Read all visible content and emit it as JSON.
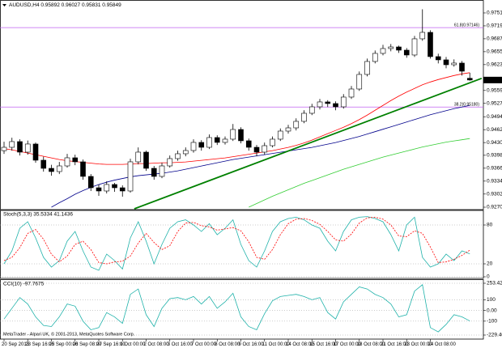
{
  "chart_data": [
    {
      "type": "candlestick",
      "title": "AUDUSD,H4 0.95892 0.96027 0.95831 0.95849",
      "open": [
        0.941,
        0.94183,
        0.94324,
        0.94063,
        0.94264,
        0.93863,
        0.93662,
        0.93582,
        0.93722,
        0.93923,
        0.93823,
        0.93462,
        0.93181,
        0.93101,
        0.93262,
        0.93181,
        0.93101,
        0.93823,
        0.94063,
        0.93662,
        0.93462,
        0.93722,
        0.93903,
        0.94023,
        0.94103,
        0.94304,
        0.94183,
        0.94424,
        0.94304,
        0.94384,
        0.94624,
        0.94344,
        0.94183,
        0.94063,
        0.94223,
        0.94384,
        0.94584,
        0.94664,
        0.94825,
        0.95025,
        0.95185,
        0.95306,
        0.95266,
        0.95185,
        0.95426,
        0.95626,
        0.95987,
        0.96308,
        0.96508,
        0.96628,
        0.96668,
        0.96588,
        0.96468,
        0.96869,
        0.97029,
        0.96428,
        0.96348,
        0.96227,
        0.96268,
        0.95892
      ],
      "high": [
        0.9432,
        0.9442,
        0.9438,
        0.9435,
        0.943,
        0.9395,
        0.9375,
        0.9382,
        0.9402,
        0.94,
        0.9388,
        0.9352,
        0.9326,
        0.9334,
        0.933,
        0.9324,
        0.939,
        0.9418,
        0.941,
        0.9372,
        0.938,
        0.9398,
        0.941,
        0.9418,
        0.9438,
        0.9436,
        0.945,
        0.9448,
        0.9445,
        0.9476,
        0.9468,
        0.944,
        0.9424,
        0.943,
        0.9445,
        0.9465,
        0.9474,
        0.949,
        0.951,
        0.9526,
        0.9538,
        0.9535,
        0.9532,
        0.955,
        0.957,
        0.9606,
        0.9638,
        0.9658,
        0.9672,
        0.9674,
        0.967,
        0.9664,
        0.9694,
        0.976,
        0.9708,
        0.965,
        0.9642,
        0.9636,
        0.9632,
        0.96027
      ],
      "low": [
        0.9402,
        0.941,
        0.9398,
        0.94,
        0.938,
        0.9358,
        0.9348,
        0.9352,
        0.9368,
        0.9374,
        0.9338,
        0.931,
        0.9298,
        0.9304,
        0.9308,
        0.9296,
        0.9306,
        0.9376,
        0.936,
        0.9338,
        0.9342,
        0.9368,
        0.9385,
        0.9396,
        0.9405,
        0.941,
        0.9414,
        0.9424,
        0.9425,
        0.9434,
        0.9428,
        0.941,
        0.9396,
        0.94,
        0.9418,
        0.9434,
        0.9452,
        0.946,
        0.9478,
        0.9498,
        0.9512,
        0.9518,
        0.951,
        0.9514,
        0.9538,
        0.9558,
        0.9594,
        0.9626,
        0.9646,
        0.9656,
        0.9652,
        0.964,
        0.9642,
        0.9682,
        0.9638,
        0.9626,
        0.9614,
        0.9618,
        0.9596,
        0.95831
      ],
      "close": [
        0.94183,
        0.94324,
        0.94063,
        0.94264,
        0.93863,
        0.93662,
        0.93582,
        0.93722,
        0.93923,
        0.93823,
        0.93462,
        0.93181,
        0.93101,
        0.93262,
        0.93181,
        0.93101,
        0.93823,
        0.94063,
        0.93662,
        0.93462,
        0.93722,
        0.93903,
        0.94023,
        0.94103,
        0.94304,
        0.94183,
        0.94424,
        0.94304,
        0.94384,
        0.94624,
        0.94344,
        0.94183,
        0.94063,
        0.94223,
        0.94384,
        0.94584,
        0.94664,
        0.94825,
        0.95025,
        0.95185,
        0.95306,
        0.95266,
        0.95185,
        0.95426,
        0.95626,
        0.95987,
        0.96308,
        0.96508,
        0.96628,
        0.96668,
        0.96588,
        0.96468,
        0.96869,
        0.97029,
        0.96428,
        0.96348,
        0.96227,
        0.96268,
        0.96067,
        0.95849
      ],
      "up_color": "#ffffff",
      "down_color": "#000000",
      "wick_color": "#000000",
      "series": [
        {
          "color": "#ff0000",
          "values": [
            0.9415,
            0.9412,
            0.9408,
            0.9404,
            0.94,
            0.9396,
            0.9392,
            0.9388,
            0.9385,
            0.9383,
            0.9381,
            0.9379,
            0.9377,
            0.9376,
            0.9376,
            0.9376,
            0.9377,
            0.9378,
            0.9378,
            0.9379,
            0.938,
            0.938,
            0.9381,
            0.9382,
            0.9384,
            0.9386,
            0.9388,
            0.939,
            0.9392,
            0.9395,
            0.9398,
            0.9401,
            0.9404,
            0.9407,
            0.941,
            0.9414,
            0.9418,
            0.9423,
            0.9429,
            0.9436,
            0.9444,
            0.9452,
            0.946,
            0.9468,
            0.9477,
            0.9487,
            0.9498,
            0.951,
            0.9522,
            0.9534,
            0.9545,
            0.9555,
            0.9564,
            0.9573,
            0.958,
            0.9586,
            0.9591,
            0.9596,
            0.96,
            0.9603
          ]
        },
        {
          "color": "#00008b",
          "values": [
            null,
            null,
            null,
            null,
            null,
            null,
            0.927,
            0.9281,
            0.9291,
            0.9302,
            0.9311,
            0.9319,
            0.9326,
            0.9332,
            0.9337,
            0.9341,
            0.9345,
            0.9348,
            0.935,
            0.9352,
            0.9354,
            0.9357,
            0.936,
            0.9364,
            0.9368,
            0.9372,
            0.9376,
            0.938,
            0.9384,
            0.9388,
            0.9391,
            0.9394,
            0.9397,
            0.94,
            0.9403,
            0.9406,
            0.9409,
            0.9412,
            0.9415,
            0.9418,
            0.9422,
            0.9426,
            0.943,
            0.9435,
            0.944,
            0.9445,
            0.9451,
            0.9457,
            0.9463,
            0.9469,
            0.9475,
            0.9481,
            0.9487,
            0.9493,
            0.9499,
            0.9504,
            0.9509,
            0.9514,
            0.9518,
            0.9522
          ]
        },
        {
          "color": "#32cd32",
          "values": [
            null,
            null,
            null,
            null,
            null,
            null,
            null,
            null,
            null,
            null,
            null,
            null,
            null,
            null,
            null,
            null,
            null,
            null,
            null,
            null,
            null,
            null,
            null,
            null,
            null,
            null,
            null,
            null,
            null,
            null,
            null,
            0.927,
            0.9279,
            0.9288,
            0.9297,
            0.9305,
            0.9313,
            0.9321,
            0.9329,
            0.9336,
            0.9343,
            0.935,
            0.9357,
            0.9364,
            0.937,
            0.9376,
            0.9382,
            0.9388,
            0.9394,
            0.9399,
            0.9404,
            0.9409,
            0.9414,
            0.9419,
            0.9423,
            0.9427,
            0.9431,
            0.9434,
            0.9437,
            0.944
          ]
        }
      ],
      "levels": [
        {
          "label": "61.8(0.97146)",
          "value": 0.97146,
          "color": "#c060f0"
        },
        {
          "label": "38.2(0.95180)",
          "value": 0.9518,
          "color": "#c060f0"
        }
      ],
      "trendline": {
        "x": [
          16.5,
          60.5
        ],
        "values": [
          0.9266,
          0.9589
        ],
        "color": "#008000"
      },
      "ylim": [
        0.9266,
        0.9779
      ],
      "yticks": [
        {
          "value": 0.9751,
          "label": "0.97510"
        },
        {
          "value": 0.9719,
          "label": "0.97190"
        },
        {
          "value": 0.9687,
          "label": "0.96870"
        },
        {
          "value": 0.9655,
          "label": "0.96550"
        },
        {
          "value": 0.9623,
          "label": "0.96230"
        },
        {
          "value": 0.9559,
          "label": "0.95590"
        },
        {
          "value": 0.9527,
          "label": "0.95270"
        },
        {
          "value": 0.9494,
          "label": "0.94940"
        },
        {
          "value": 0.9462,
          "label": "0.94620"
        },
        {
          "value": 0.943,
          "label": "0.94300"
        },
        {
          "value": 0.93985,
          "label": "0.93985"
        },
        {
          "value": 0.93665,
          "label": "0.93665"
        },
        {
          "value": 0.93345,
          "label": "0.93345"
        },
        {
          "value": 0.93025,
          "label": "0.93025"
        },
        {
          "value": 0.927,
          "label": "0.92700"
        }
      ]
    },
    {
      "type": "line",
      "title": "Stoch(5,3,3) 35.5334 41.1436",
      "series": [
        {
          "color": "#20b2aa",
          "values": [
            20,
            40,
            75,
            85,
            60,
            30,
            15,
            25,
            55,
            70,
            40,
            15,
            10,
            35,
            25,
            12,
            60,
            85,
            55,
            20,
            50,
            75,
            85,
            88,
            80,
            70,
            82,
            65,
            75,
            88,
            50,
            25,
            15,
            40,
            70,
            85,
            90,
            92,
            88,
            80,
            75,
            55,
            40,
            70,
            88,
            92,
            93,
            90,
            85,
            65,
            40,
            80,
            92,
            30,
            15,
            20,
            35,
            25,
            40,
            35.5334
          ]
        },
        {
          "color": "#ff0000",
          "dashed": true,
          "values": [
            25,
            30,
            45,
            67,
            73,
            58,
            35,
            23,
            32,
            50,
            55,
            42,
            22,
            20,
            23,
            24,
            32,
            52,
            67,
            53,
            42,
            48,
            70,
            83,
            84,
            79,
            77,
            72,
            74,
            76,
            71,
            54,
            30,
            27,
            42,
            65,
            82,
            89,
            90,
            87,
            81,
            70,
            57,
            55,
            66,
            83,
            91,
            92,
            89,
            80,
            63,
            62,
            71,
            67,
            46,
            22,
            23,
            27,
            33,
            41.1436
          ]
        }
      ],
      "ylim": [
        0,
        100
      ],
      "yticks": [
        80,
        20,
        0
      ]
    },
    {
      "type": "line",
      "title": "CCI(10) -97.7675",
      "annotation": "MetaTrader - Alpari UK, © 2001-2013, MetaQuotes Software Corp.",
      "categories": [
        "20 Sep 2013",
        null,
        null,
        "23 Sep 16:00",
        null,
        null,
        "25 Sep 00:00",
        null,
        null,
        "26 Sep 08:00",
        null,
        null,
        "27 Sep 16:00",
        null,
        null,
        "1 Oct 00:00",
        null,
        null,
        "2 Oct 08:00",
        null,
        null,
        "3 Oct 16:00",
        null,
        null,
        "7 Oct 00:00",
        null,
        null,
        "8 Oct 08:00",
        null,
        null,
        "9 Oct 16:00",
        null,
        null,
        "11 Oct 00:00",
        null,
        null,
        "14 Oct 08:00",
        null,
        null,
        "15 Oct 16:00",
        null,
        null,
        "17 Oct 00:00",
        null,
        null,
        "18 Oct 08:00",
        null,
        null,
        "21 Oct 16:00",
        null,
        null,
        "23 Oct 00:00",
        null,
        null,
        "24 Oct 08:00",
        null,
        null,
        null,
        null,
        null
      ],
      "series": [
        {
          "color": "#20b2aa",
          "values": [
            -80,
            20,
            120,
            60,
            -60,
            -140,
            -150,
            -60,
            60,
            40,
            -100,
            -180,
            -160,
            -20,
            -60,
            -120,
            150,
            200,
            -40,
            -150,
            20,
            110,
            120,
            100,
            130,
            60,
            130,
            20,
            80,
            160,
            -60,
            -150,
            -180,
            -30,
            90,
            130,
            140,
            150,
            130,
            100,
            120,
            -20,
            -80,
            80,
            150,
            220,
            200,
            150,
            120,
            60,
            -60,
            -40,
            180,
            240,
            -160,
            -200,
            -130,
            -40,
            -60,
            -97.7675
          ]
        }
      ],
      "ylim": [
        -229.4014,
        253.4218
      ],
      "yticks": [
        253.4218,
        100,
        {
          "value": 0,
          "label": "0.00"
        },
        -100,
        -229.4014
      ]
    }
  ]
}
